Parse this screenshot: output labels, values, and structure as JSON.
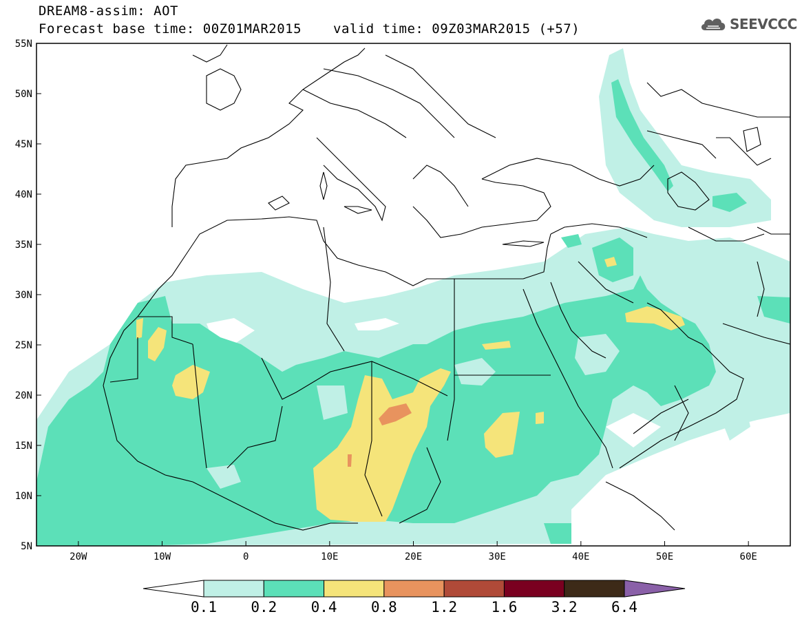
{
  "header": {
    "line1": "DREAM8-assim: AOT",
    "line2": "Forecast base time: 00Z01MAR2015",
    "line3": "valid time: 09Z03MAR2015 (+57)",
    "logo_text": "SEEVCCC",
    "logo_icon": "cloud-icon"
  },
  "map": {
    "region": "North Africa / Mediterranean / Middle East",
    "projection": "lat-lon",
    "lon_range": [
      -25,
      65
    ],
    "lat_range": [
      5,
      55
    ],
    "lon_ticks": [
      {
        "value": -20,
        "label": "20W"
      },
      {
        "value": -10,
        "label": "10W"
      },
      {
        "value": 0,
        "label": "0"
      },
      {
        "value": 10,
        "label": "10E"
      },
      {
        "value": 20,
        "label": "20E"
      },
      {
        "value": 30,
        "label": "30E"
      },
      {
        "value": 40,
        "label": "40E"
      },
      {
        "value": 50,
        "label": "50E"
      },
      {
        "value": 60,
        "label": "60E"
      }
    ],
    "lat_ticks": [
      {
        "value": 55,
        "label": "55N"
      },
      {
        "value": 50,
        "label": "50N"
      },
      {
        "value": 45,
        "label": "45N"
      },
      {
        "value": 40,
        "label": "40N"
      },
      {
        "value": 35,
        "label": "35N"
      },
      {
        "value": 30,
        "label": "30N"
      },
      {
        "value": 25,
        "label": "25N"
      },
      {
        "value": 20,
        "label": "20N"
      },
      {
        "value": 15,
        "label": "15N"
      },
      {
        "value": 10,
        "label": "10N"
      },
      {
        "value": 5,
        "label": "5N"
      }
    ]
  },
  "colorbar": {
    "colors": [
      "#ffffff",
      "#c0f0e6",
      "#5ce0b8",
      "#f5e47a",
      "#e8935e",
      "#b04a38",
      "#7a0020",
      "#3d2a18",
      "#8a60a8"
    ],
    "labels": [
      "0.1",
      "0.2",
      "0.4",
      "0.8",
      "1.2",
      "1.6",
      "3.2",
      "6.4"
    ]
  }
}
